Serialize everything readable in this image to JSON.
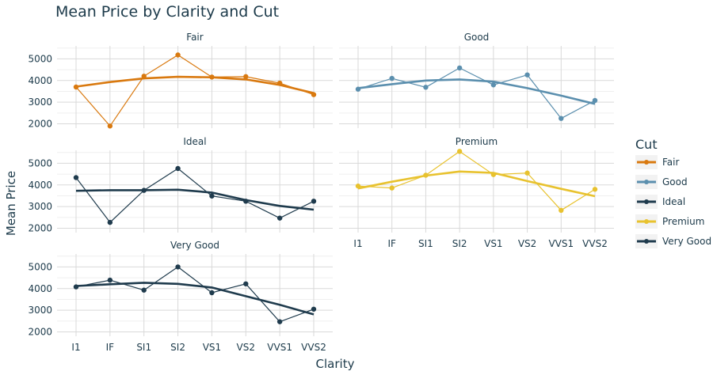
{
  "chart_data": {
    "type": "line",
    "title": "Mean Price by Clarity and Cut",
    "xlabel": "Clarity",
    "ylabel": "Mean Price",
    "categories": [
      "I1",
      "IF",
      "SI1",
      "SI2",
      "VS1",
      "VS2",
      "VVS1",
      "VVS2"
    ],
    "y_ticks": [
      "2000",
      "3000",
      "4000",
      "5000"
    ],
    "ylim": [
      1800,
      5600
    ],
    "grid": true,
    "legend": {
      "title": "Cut",
      "placement": "right"
    },
    "facets": [
      {
        "name": "Fair",
        "color": "#d9790f",
        "values": [
          3700,
          1900,
          4200,
          5180,
          4160,
          4180,
          3880,
          3350
        ],
        "smooth": [
          3720,
          3930,
          4100,
          4170,
          4150,
          4050,
          3800,
          3420
        ]
      },
      {
        "name": "Good",
        "color": "#5b8fae",
        "values": [
          3600,
          4100,
          3690,
          4580,
          3800,
          4260,
          2250,
          3080
        ],
        "smooth": [
          3650,
          3830,
          4000,
          4050,
          3950,
          3650,
          3300,
          2920
        ]
      },
      {
        "name": "Ideal",
        "color": "#1f3b4d",
        "values": [
          4340,
          2270,
          3750,
          4760,
          3490,
          3250,
          2470,
          3250
        ],
        "smooth": [
          3730,
          3760,
          3760,
          3780,
          3650,
          3300,
          3030,
          2860
        ]
      },
      {
        "name": "Premium",
        "color": "#e8c22e",
        "values": [
          3950,
          3860,
          4450,
          5550,
          4480,
          4550,
          2830,
          3800
        ],
        "smooth": [
          3840,
          4150,
          4430,
          4620,
          4560,
          4180,
          3820,
          3480
        ]
      },
      {
        "name": "Very Good",
        "color": "#1f3b4d",
        "values": [
          4080,
          4390,
          3930,
          5000,
          3810,
          4220,
          2470,
          3050
        ],
        "smooth": [
          4120,
          4200,
          4270,
          4220,
          4050,
          3650,
          3250,
          2810
        ]
      }
    ]
  }
}
